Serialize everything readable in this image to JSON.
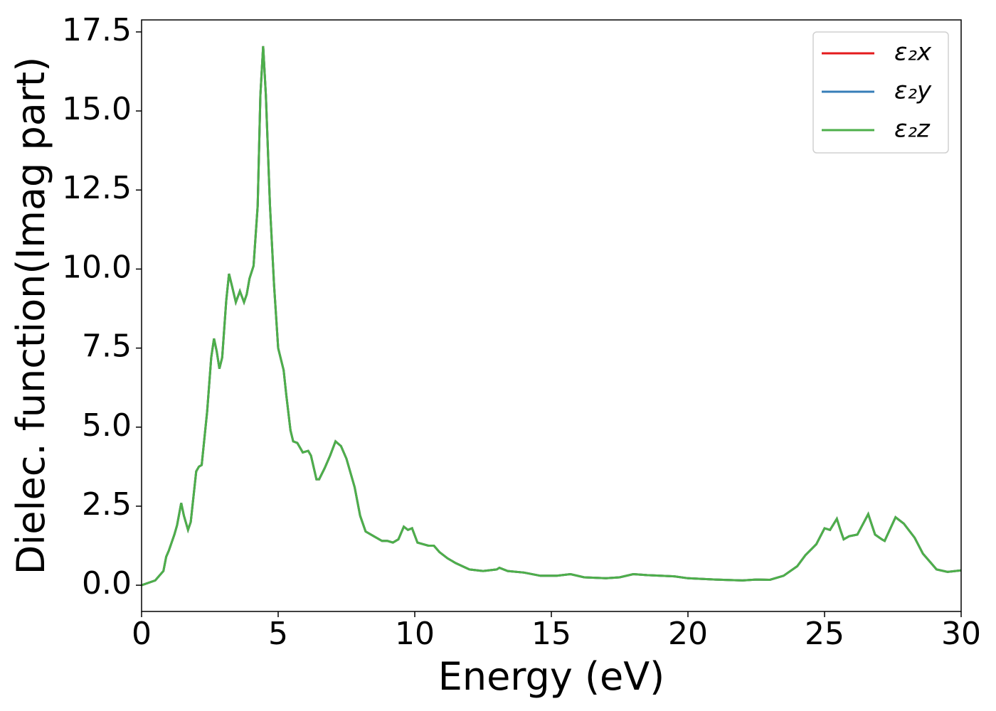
{
  "chart_data": {
    "type": "line",
    "xlabel": "Energy (eV)",
    "ylabel": "Dielec. function(Imag part)",
    "xlim": [
      0,
      30
    ],
    "ylim": [
      -0.83,
      17.88
    ],
    "xticks": [
      0,
      5,
      10,
      15,
      20,
      25,
      30
    ],
    "yticks": [
      {
        "value": 0,
        "label": "0.0"
      },
      2.5,
      {
        "value": 5,
        "label": "5.0"
      },
      7.5,
      {
        "value": 10,
        "label": "10.0"
      },
      12.5,
      {
        "value": 15,
        "label": "15.0"
      },
      17.5
    ],
    "legend": "upper right",
    "grid": false,
    "x": [
      0,
      0.5,
      0.8,
      0.9,
      1.0,
      1.2,
      1.3,
      1.45,
      1.55,
      1.7,
      1.8,
      2.0,
      2.1,
      2.2,
      2.4,
      2.55,
      2.65,
      2.75,
      2.85,
      2.95,
      3.1,
      3.2,
      3.3,
      3.45,
      3.6,
      3.75,
      3.85,
      3.95,
      4.1,
      4.25,
      4.35,
      4.45,
      4.55,
      4.7,
      4.85,
      5.0,
      5.2,
      5.3,
      5.45,
      5.55,
      5.7,
      5.9,
      6.1,
      6.2,
      6.4,
      6.5,
      6.7,
      6.9,
      7.1,
      7.3,
      7.5,
      7.8,
      8.0,
      8.2,
      8.5,
      8.8,
      9.0,
      9.2,
      9.4,
      9.6,
      9.75,
      9.9,
      10.1,
      10.3,
      10.5,
      10.7,
      10.9,
      11.2,
      11.5,
      12.0,
      12.5,
      13.0,
      13.1,
      13.4,
      14.0,
      14.6,
      15.2,
      15.7,
      16.2,
      17.0,
      17.5,
      18.0,
      18.5,
      19.0,
      19.5,
      20.0,
      21.0,
      22.0,
      22.5,
      23.0,
      23.5,
      24.0,
      24.3,
      24.7,
      25.0,
      25.2,
      25.45,
      25.6,
      25.7,
      25.9,
      26.2,
      26.6,
      26.85,
      27.1,
      27.2,
      27.6,
      27.9,
      28.3,
      28.6,
      28.9,
      29.1,
      29.5,
      30.0
    ],
    "series": [
      {
        "name": "ε₂x",
        "color": "#e41a1c",
        "values": [
          0.0,
          0.15,
          0.45,
          0.9,
          1.1,
          1.6,
          1.9,
          2.6,
          2.2,
          1.75,
          2.0,
          3.6,
          3.75,
          3.8,
          5.5,
          7.2,
          7.8,
          7.4,
          6.85,
          7.2,
          9.0,
          9.85,
          9.5,
          8.95,
          9.3,
          8.95,
          9.2,
          9.7,
          10.1,
          12.0,
          15.5,
          17.05,
          15.5,
          12.0,
          9.5,
          7.5,
          6.8,
          6.0,
          4.9,
          4.55,
          4.5,
          4.2,
          4.25,
          4.1,
          3.35,
          3.35,
          3.7,
          4.1,
          4.55,
          4.4,
          4.0,
          3.1,
          2.2,
          1.7,
          1.55,
          1.4,
          1.4,
          1.35,
          1.45,
          1.85,
          1.75,
          1.8,
          1.35,
          1.3,
          1.25,
          1.25,
          1.05,
          0.85,
          0.7,
          0.5,
          0.45,
          0.5,
          0.55,
          0.45,
          0.4,
          0.3,
          0.3,
          0.35,
          0.25,
          0.22,
          0.25,
          0.35,
          0.32,
          0.3,
          0.28,
          0.22,
          0.18,
          0.15,
          0.18,
          0.17,
          0.3,
          0.6,
          0.95,
          1.3,
          1.8,
          1.75,
          2.1,
          1.7,
          1.45,
          1.55,
          1.6,
          2.25,
          1.6,
          1.45,
          1.4,
          2.15,
          1.95,
          1.5,
          1.0,
          0.7,
          0.5,
          0.42,
          0.47
        ]
      },
      {
        "name": "ε₂y",
        "color": "#377eb8",
        "values": [
          0.0,
          0.15,
          0.45,
          0.9,
          1.1,
          1.6,
          1.9,
          2.6,
          2.2,
          1.75,
          2.0,
          3.6,
          3.75,
          3.8,
          5.5,
          7.2,
          7.8,
          7.4,
          6.85,
          7.2,
          9.0,
          9.85,
          9.5,
          8.95,
          9.3,
          8.95,
          9.2,
          9.7,
          10.1,
          12.0,
          15.5,
          17.05,
          15.5,
          12.0,
          9.5,
          7.5,
          6.8,
          6.0,
          4.9,
          4.55,
          4.5,
          4.2,
          4.25,
          4.1,
          3.35,
          3.35,
          3.7,
          4.1,
          4.55,
          4.4,
          4.0,
          3.1,
          2.2,
          1.7,
          1.55,
          1.4,
          1.4,
          1.35,
          1.45,
          1.85,
          1.75,
          1.8,
          1.35,
          1.3,
          1.25,
          1.25,
          1.05,
          0.85,
          0.7,
          0.5,
          0.45,
          0.5,
          0.55,
          0.45,
          0.4,
          0.3,
          0.3,
          0.35,
          0.25,
          0.22,
          0.25,
          0.35,
          0.32,
          0.3,
          0.28,
          0.22,
          0.18,
          0.15,
          0.18,
          0.17,
          0.3,
          0.6,
          0.95,
          1.3,
          1.8,
          1.75,
          2.1,
          1.7,
          1.45,
          1.55,
          1.6,
          2.25,
          1.6,
          1.45,
          1.4,
          2.15,
          1.95,
          1.5,
          1.0,
          0.7,
          0.5,
          0.42,
          0.47
        ]
      },
      {
        "name": "ε₂z",
        "color": "#4daf4a",
        "values": [
          0.0,
          0.15,
          0.45,
          0.9,
          1.1,
          1.6,
          1.9,
          2.6,
          2.2,
          1.75,
          2.0,
          3.6,
          3.75,
          3.8,
          5.5,
          7.2,
          7.8,
          7.4,
          6.85,
          7.2,
          9.0,
          9.85,
          9.5,
          8.95,
          9.3,
          8.95,
          9.2,
          9.7,
          10.1,
          12.0,
          15.5,
          17.05,
          15.5,
          12.0,
          9.5,
          7.5,
          6.8,
          6.0,
          4.9,
          4.55,
          4.5,
          4.2,
          4.25,
          4.1,
          3.35,
          3.35,
          3.7,
          4.1,
          4.55,
          4.4,
          4.0,
          3.1,
          2.2,
          1.7,
          1.55,
          1.4,
          1.4,
          1.35,
          1.45,
          1.85,
          1.75,
          1.8,
          1.35,
          1.3,
          1.25,
          1.25,
          1.05,
          0.85,
          0.7,
          0.5,
          0.45,
          0.5,
          0.55,
          0.45,
          0.4,
          0.3,
          0.3,
          0.35,
          0.25,
          0.22,
          0.25,
          0.35,
          0.32,
          0.3,
          0.28,
          0.22,
          0.18,
          0.15,
          0.18,
          0.17,
          0.3,
          0.6,
          0.95,
          1.3,
          1.8,
          1.75,
          2.1,
          1.7,
          1.45,
          1.55,
          1.6,
          2.25,
          1.6,
          1.45,
          1.4,
          2.15,
          1.95,
          1.5,
          1.0,
          0.7,
          0.5,
          0.42,
          0.47
        ]
      }
    ]
  }
}
